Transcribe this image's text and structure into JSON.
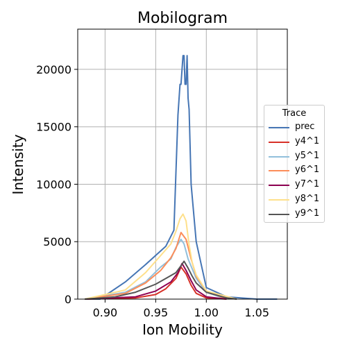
{
  "chart_data": {
    "type": "line",
    "title": "Mobilogram",
    "xlabel": "Ion Mobility",
    "ylabel": "Intensity",
    "xlim": [
      0.873,
      1.08
    ],
    "ylim": [
      0,
      23500
    ],
    "xticks": [
      0.9,
      0.95,
      1.0,
      1.05
    ],
    "xtick_labels": [
      "0.90",
      "0.95",
      "1.00",
      "1.05"
    ],
    "yticks": [
      0,
      5000,
      10000,
      15000,
      20000
    ],
    "ytick_labels": [
      "0",
      "5000",
      "10000",
      "15000",
      "20000"
    ],
    "grid": true,
    "legend": {
      "title": "Trace",
      "placement": "center-right"
    },
    "series": [
      {
        "name": "prec",
        "color": "#4575b4",
        "x": [
          0.88,
          0.895,
          0.9,
          0.92,
          0.94,
          0.96,
          0.968,
          0.972,
          0.974,
          0.975,
          0.977,
          0.978,
          0.979,
          0.98,
          0.981,
          0.982,
          0.983,
          0.985,
          0.987,
          0.99,
          0.995,
          1.0,
          1.02,
          1.05,
          1.07
        ],
        "y": [
          0,
          0,
          300,
          1500,
          3000,
          4600,
          6000,
          16000,
          18700,
          18700,
          21200,
          21200,
          18700,
          18700,
          21200,
          17500,
          16500,
          10000,
          8000,
          5000,
          3000,
          1000,
          200,
          0,
          0
        ]
      },
      {
        "name": "y4^1",
        "color": "#d73027",
        "x": [
          0.88,
          0.93,
          0.95,
          0.96,
          0.97,
          0.975,
          0.98,
          0.985,
          0.99,
          1.0,
          1.02
        ],
        "y": [
          0,
          100,
          400,
          900,
          1800,
          2800,
          2200,
          1200,
          500,
          100,
          0
        ]
      },
      {
        "name": "y5^1",
        "color": "#91bfdb",
        "x": [
          0.88,
          0.92,
          0.94,
          0.955,
          0.965,
          0.97,
          0.975,
          0.978,
          0.982,
          0.99,
          1.0,
          1.02
        ],
        "y": [
          0,
          600,
          1500,
          2800,
          3500,
          4500,
          5200,
          4800,
          3500,
          1800,
          600,
          0
        ]
      },
      {
        "name": "y6^1",
        "color": "#fc8d59",
        "x": [
          0.88,
          0.92,
          0.94,
          0.955,
          0.965,
          0.97,
          0.975,
          0.98,
          0.985,
          0.99,
          1.0,
          1.02
        ],
        "y": [
          0,
          500,
          1400,
          2500,
          3600,
          4400,
          5800,
          5200,
          3500,
          2000,
          700,
          0
        ]
      },
      {
        "name": "y7^1",
        "color": "#8e0152",
        "x": [
          0.88,
          0.93,
          0.95,
          0.965,
          0.972,
          0.976,
          0.98,
          0.985,
          0.99,
          1.0,
          1.02
        ],
        "y": [
          0,
          200,
          700,
          1500,
          2300,
          3100,
          2500,
          1600,
          800,
          200,
          0
        ]
      },
      {
        "name": "y8^1",
        "color": "#fee08b",
        "x": [
          0.88,
          0.92,
          0.94,
          0.955,
          0.965,
          0.97,
          0.974,
          0.977,
          0.98,
          0.983,
          0.986,
          0.99,
          1.0,
          1.03
        ],
        "y": [
          0,
          800,
          2300,
          3800,
          4800,
          5900,
          7000,
          7400,
          6800,
          4700,
          3200,
          2100,
          700,
          0
        ]
      },
      {
        "name": "y9^1",
        "color": "#555555",
        "x": [
          0.88,
          0.91,
          0.93,
          0.95,
          0.96,
          0.97,
          0.975,
          0.978,
          0.982,
          0.986,
          0.99,
          1.0,
          1.02,
          1.03
        ],
        "y": [
          0,
          200,
          600,
          1300,
          1800,
          2300,
          2900,
          3300,
          2700,
          2000,
          1400,
          600,
          100,
          0
        ]
      }
    ]
  }
}
